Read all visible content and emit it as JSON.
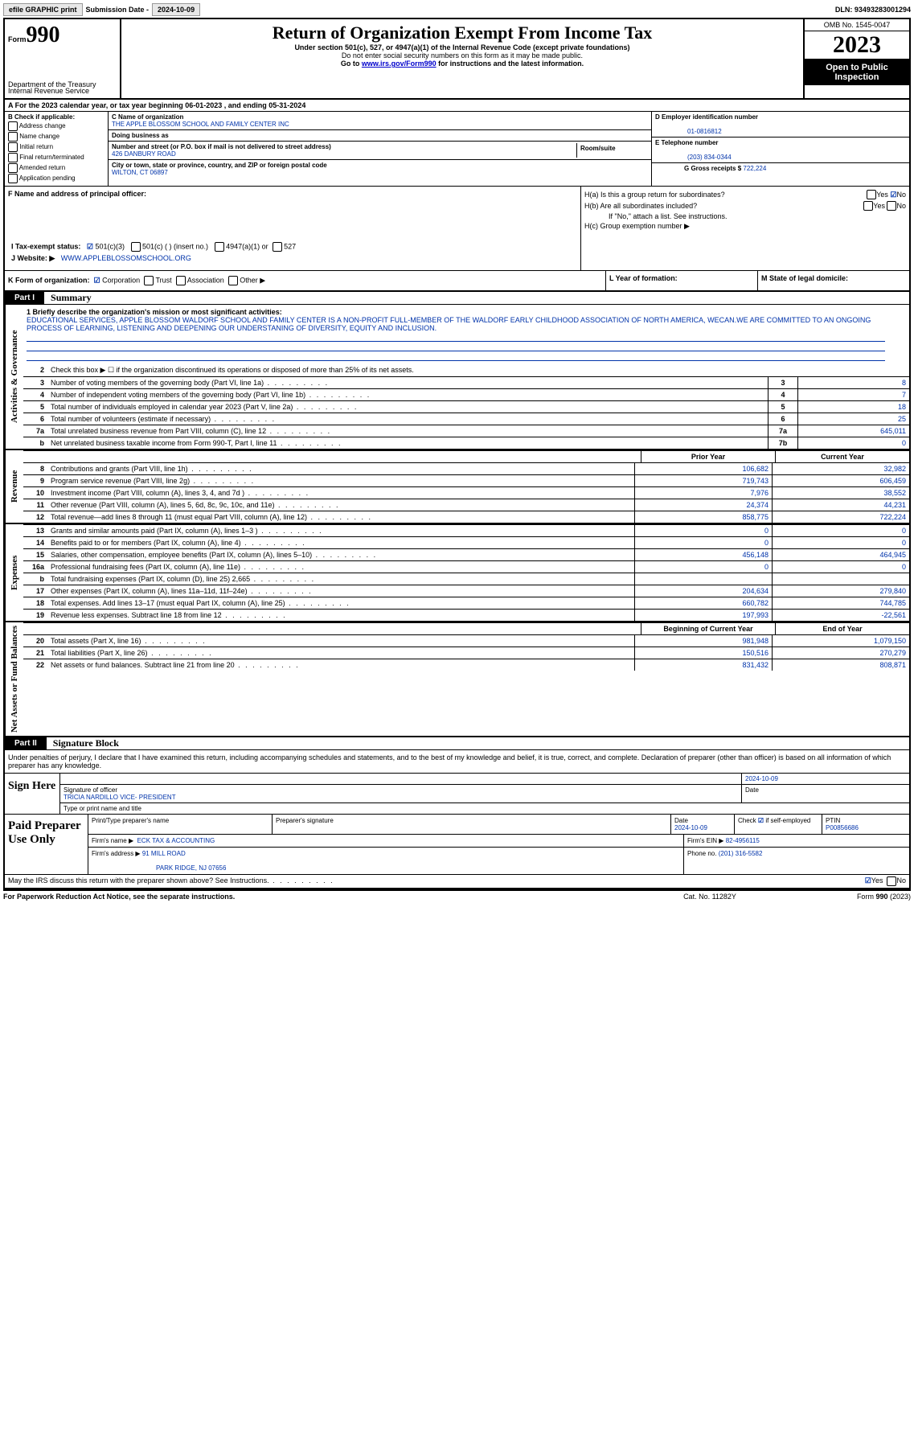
{
  "top": {
    "efile": "efile GRAPHIC print",
    "subdate_lbl": "Submission Date - ",
    "subdate": "2024-10-09",
    "dln": "DLN: 93493283001294"
  },
  "header": {
    "form": "Form",
    "n990": "990",
    "dept": "Department of the Treasury",
    "irs": "Internal Revenue Service",
    "title": "Return of Organization Exempt From Income Tax",
    "sub1": "Under section 501(c), 527, or 4947(a)(1) of the Internal Revenue Code (except private foundations)",
    "sub2": "Do not enter social security numbers on this form as it may be made public.",
    "sub3a": "Go to ",
    "sub3link": "www.irs.gov/Form990",
    "sub3b": " for instructions and the latest information.",
    "omb": "OMB No. 1545-0047",
    "year": "2023",
    "open": "Open to Public Inspection"
  },
  "a": {
    "text": "A For the 2023 calendar year, or tax year beginning 06-01-2023   , and ending 05-31-2024"
  },
  "b": {
    "hdr": "B Check if applicable:",
    "o1": "Address change",
    "o2": "Name change",
    "o3": "Initial return",
    "o4": "Final return/terminated",
    "o5": "Amended return",
    "o6": "Application pending"
  },
  "c": {
    "name_lbl": "C Name of organization",
    "name": "THE APPLE BLOSSOM SCHOOL AND FAMILY CENTER INC",
    "dba_lbl": "Doing business as",
    "addr_lbl": "Number and street (or P.O. box if mail is not delivered to street address)",
    "addr": "426 DANBURY ROAD",
    "room_lbl": "Room/suite",
    "city_lbl": "City or town, state or province, country, and ZIP or foreign postal code",
    "city": "WILTON, CT  06897"
  },
  "de": {
    "d_lbl": "D Employer identification number",
    "d_val": "01-0816812",
    "e_lbl": "E Telephone number",
    "e_val": "(203) 834-0344",
    "g_lbl": "G Gross receipts $ ",
    "g_val": "722,224"
  },
  "f": {
    "lbl": "F Name and address of principal officer:"
  },
  "h": {
    "a": "H(a)  Is this a group return for subordinates?",
    "b": "H(b)  Are all subordinates included?",
    "bnote": "If \"No,\" attach a list. See instructions.",
    "c": "H(c)  Group exemption number ▶",
    "yes": "Yes",
    "no": "No"
  },
  "i": {
    "lbl": "I    Tax-exempt status:",
    "o1": "501(c)(3)",
    "o2": "501(c) (  ) (insert no.)",
    "o3": "4947(a)(1) or",
    "o4": "527"
  },
  "j": {
    "lbl": "J   Website: ▶",
    "val": "WWW.APPLEBLOSSOMSCHOOL.ORG"
  },
  "k": {
    "lbl": "K Form of organization:",
    "o1": "Corporation",
    "o2": "Trust",
    "o3": "Association",
    "o4": "Other ▶"
  },
  "l": {
    "lbl": "L Year of formation:"
  },
  "m": {
    "lbl": "M State of legal domicile:"
  },
  "parts": {
    "p1": "Part I",
    "p1t": "Summary",
    "p2": "Part II",
    "p2t": "Signature Block"
  },
  "sides": {
    "gov": "Activities & Governance",
    "rev": "Revenue",
    "exp": "Expenses",
    "net": "Net Assets or Fund Balances"
  },
  "mission": {
    "lbl": "1   Briefly describe the organization's mission or most significant activities:",
    "text": "EDUCATIONAL SERVICES, APPLE BLOSSOM WALDORF SCHOOL AND FAMILY CENTER IS A NON-PROFIT FULL-MEMBER OF THE WALDORF EARLY CHILDHOOD ASSOCIATION OF NORTH AMERICA, WECAN.WE ARE COMMITTED TO AN ONGOING PROCESS OF LEARNING, LISTENING AND DEEPENING OUR UNDERSTANING OF DIVERSITY, EQUITY AND INCLUSION."
  },
  "gov_rows": [
    {
      "n": "2",
      "d": "Check this box ▶ ☐ if the organization discontinued its operations or disposed of more than 25% of its net assets."
    },
    {
      "n": "3",
      "d": "Number of voting members of the governing body (Part VI, line 1a)",
      "box": "3",
      "v": "8"
    },
    {
      "n": "4",
      "d": "Number of independent voting members of the governing body (Part VI, line 1b)",
      "box": "4",
      "v": "7"
    },
    {
      "n": "5",
      "d": "Total number of individuals employed in calendar year 2023 (Part V, line 2a)",
      "box": "5",
      "v": "18"
    },
    {
      "n": "6",
      "d": "Total number of volunteers (estimate if necessary)",
      "box": "6",
      "v": "25"
    },
    {
      "n": "7a",
      "d": "Total unrelated business revenue from Part VIII, column (C), line 12",
      "box": "7a",
      "v": "645,011"
    },
    {
      "n": "b",
      "d": "Net unrelated business taxable income from Form 990-T, Part I, line 11",
      "box": "7b",
      "v": "0"
    }
  ],
  "cols": {
    "prior": "Prior Year",
    "current": "Current Year",
    "boc": "Beginning of Current Year",
    "eoy": "End of Year"
  },
  "rev_rows": [
    {
      "n": "8",
      "d": "Contributions and grants (Part VIII, line 1h)",
      "p": "106,682",
      "c": "32,982"
    },
    {
      "n": "9",
      "d": "Program service revenue (Part VIII, line 2g)",
      "p": "719,743",
      "c": "606,459"
    },
    {
      "n": "10",
      "d": "Investment income (Part VIII, column (A), lines 3, 4, and 7d )",
      "p": "7,976",
      "c": "38,552"
    },
    {
      "n": "11",
      "d": "Other revenue (Part VIII, column (A), lines 5, 6d, 8c, 9c, 10c, and 11e)",
      "p": "24,374",
      "c": "44,231"
    },
    {
      "n": "12",
      "d": "Total revenue—add lines 8 through 11 (must equal Part VIII, column (A), line 12)",
      "p": "858,775",
      "c": "722,224"
    }
  ],
  "exp_rows": [
    {
      "n": "13",
      "d": "Grants and similar amounts paid (Part IX, column (A), lines 1–3 )",
      "p": "0",
      "c": "0"
    },
    {
      "n": "14",
      "d": "Benefits paid to or for members (Part IX, column (A), line 4)",
      "p": "0",
      "c": "0"
    },
    {
      "n": "15",
      "d": "Salaries, other compensation, employee benefits (Part IX, column (A), lines 5–10)",
      "p": "456,148",
      "c": "464,945"
    },
    {
      "n": "16a",
      "d": "Professional fundraising fees (Part IX, column (A), line 11e)",
      "p": "0",
      "c": "0"
    },
    {
      "n": "b",
      "d": "Total fundraising expenses (Part IX, column (D), line 25) 2,665",
      "p": "",
      "c": ""
    },
    {
      "n": "17",
      "d": "Other expenses (Part IX, column (A), lines 11a–11d, 11f–24e)",
      "p": "204,634",
      "c": "279,840"
    },
    {
      "n": "18",
      "d": "Total expenses. Add lines 13–17 (must equal Part IX, column (A), line 25)",
      "p": "660,782",
      "c": "744,785"
    },
    {
      "n": "19",
      "d": "Revenue less expenses. Subtract line 18 from line 12",
      "p": "197,993",
      "c": "-22,561"
    }
  ],
  "net_rows": [
    {
      "n": "20",
      "d": "Total assets (Part X, line 16)",
      "p": "981,948",
      "c": "1,079,150"
    },
    {
      "n": "21",
      "d": "Total liabilities (Part X, line 26)",
      "p": "150,516",
      "c": "270,279"
    },
    {
      "n": "22",
      "d": "Net assets or fund balances. Subtract line 21 from line 20",
      "p": "831,432",
      "c": "808,871"
    }
  ],
  "sig": {
    "perjury": "Under penalties of perjury, I declare that I have examined this return, including accompanying schedules and statements, and to the best of my knowledge and belief, it is true, correct, and complete. Declaration of preparer (other than officer) is based on all information of which preparer has any knowledge.",
    "sign_here": "Sign Here",
    "sig_officer": "Signature of officer",
    "officer": "TRICIA NARDILLO  VICE- PRESIDENT",
    "type_name": "Type or print name and title",
    "date_lbl": "Date",
    "date": "2024-10-09"
  },
  "paid": {
    "lbl": "Paid Preparer Use Only",
    "h1": "Print/Type preparer's name",
    "h2": "Preparer's signature",
    "h3": "Date",
    "h3v": "2024-10-09",
    "h4a": "Check",
    "h4b": "if self-employed",
    "h5": "PTIN",
    "h5v": "P00856686",
    "firm_lbl": "Firm's name    ▶",
    "firm": "ECK TAX & ACCOUNTING",
    "ein_lbl": "Firm's EIN ▶",
    "ein": "82-4956115",
    "addr_lbl": "Firm's address ▶",
    "addr1": "91 MILL ROAD",
    "addr2": "PARK RIDGE, NJ  07656",
    "phone_lbl": "Phone no.",
    "phone": "(201) 316-5582"
  },
  "discuss": {
    "q": "May the IRS discuss this return with the preparer shown above? See Instructions.",
    "yes": "Yes",
    "no": "No"
  },
  "footer": {
    "l": "For Paperwork Reduction Act Notice, see the separate instructions.",
    "c": "Cat. No. 11282Y",
    "r": "Form 990 (2023)"
  }
}
